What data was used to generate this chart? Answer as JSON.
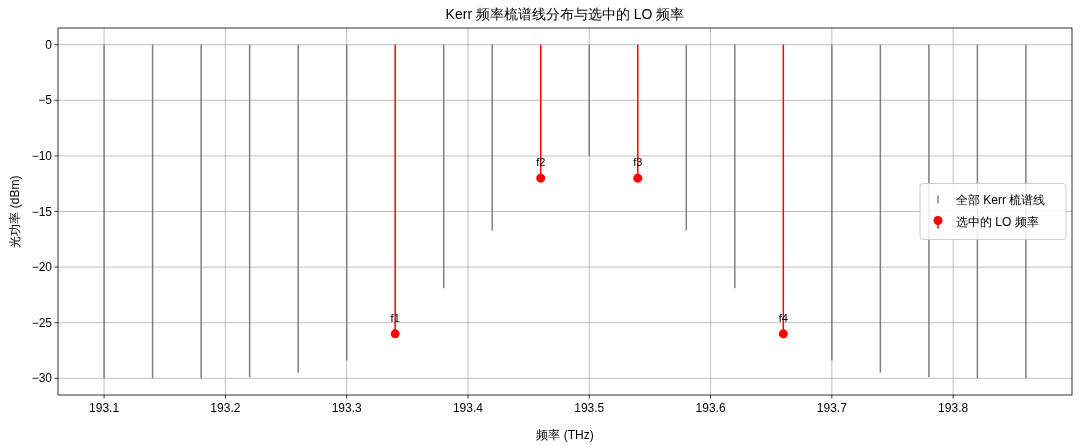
{
  "chart_data": {
    "type": "lollipop",
    "title": "Kerr 频率梳谱线分布与选中的 LO 频率",
    "xlabel": "频率 (THz)",
    "ylabel": "光功率 (dBm)",
    "xlim": [
      193.062,
      193.898
    ],
    "xticks": [
      193.1,
      193.2,
      193.3,
      193.4,
      193.5,
      193.6,
      193.7,
      193.8
    ],
    "ylim": [
      -31.5,
      1.5
    ],
    "yticks": [
      0,
      {
        "value": -5,
        "label": "−5"
      },
      {
        "value": -10,
        "label": "−10"
      },
      {
        "value": -15,
        "label": "−15"
      },
      {
        "value": -20,
        "label": "−20"
      },
      {
        "value": -25,
        "label": "−25"
      },
      {
        "value": -30,
        "label": "−30"
      }
    ],
    "grid": true,
    "legend": "right",
    "series": [
      {
        "name": "全部 Kerr 梳谱线",
        "color": "#808080",
        "type": "bar",
        "x": [
          193.1,
          193.14,
          193.18,
          193.22,
          193.26,
          193.3,
          193.34,
          193.38,
          193.42,
          193.46,
          193.5,
          193.54,
          193.58,
          193.62,
          193.66,
          193.7,
          193.74,
          193.78,
          193.82,
          193.86
        ],
        "values": [
          -30,
          -30,
          -30,
          -29.9,
          -29.5,
          -28.4,
          null,
          -21.9,
          -16.7,
          null,
          -10,
          null,
          -16.7,
          -21.9,
          null,
          -28.4,
          -29.5,
          -29.9,
          -30,
          -30
        ]
      },
      {
        "name": "选中的 LO 频率",
        "color": "#ff0000",
        "marker": "circle",
        "x": [
          193.34,
          193.46,
          193.54,
          193.66
        ],
        "values": [
          -26,
          -12,
          -12,
          -26
        ]
      }
    ],
    "annotations": [
      {
        "text": "f1",
        "x": 193.34,
        "y": -26
      },
      {
        "text": "f2",
        "x": 193.46,
        "y": -12
      },
      {
        "text": "f3",
        "x": 193.54,
        "y": -12
      },
      {
        "text": "f4",
        "x": 193.66,
        "y": -26
      }
    ]
  }
}
